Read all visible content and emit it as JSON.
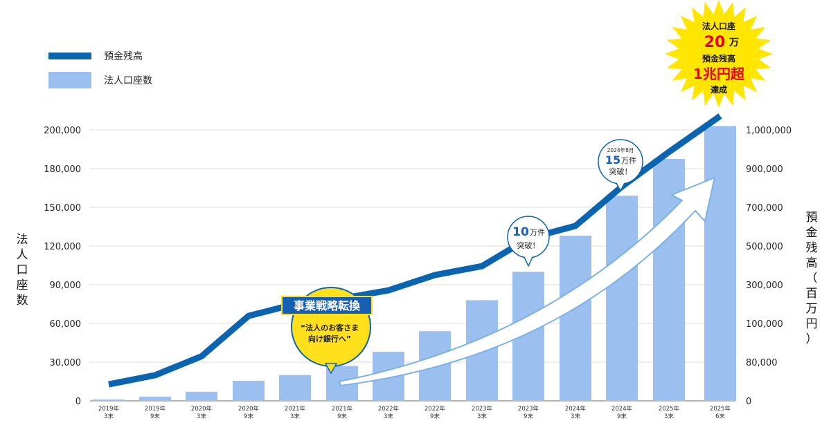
{
  "chart_data": {
    "type": "bar+line",
    "legend": [
      {
        "name": "預金残高",
        "kind": "line",
        "color": "#0a64b0"
      },
      {
        "name": "法人口座数",
        "kind": "bar",
        "color": "#9bbfee"
      }
    ],
    "legend_position": "top-left",
    "categories": [
      [
        "2019年",
        "3末"
      ],
      [
        "2019年",
        "9末"
      ],
      [
        "2020年",
        "3末"
      ],
      [
        "2020年",
        "9末"
      ],
      [
        "2021年",
        "3末"
      ],
      [
        "2021年",
        "9末"
      ],
      [
        "2022年",
        "3末"
      ],
      [
        "2022年",
        "9末"
      ],
      [
        "2023年",
        "3末"
      ],
      [
        "2023年",
        "9末"
      ],
      [
        "2024年",
        "3末"
      ],
      [
        "2024年",
        "9末"
      ],
      [
        "2025年",
        "3末"
      ],
      [
        "2025年",
        "6末"
      ]
    ],
    "y_left": {
      "label": "法人口座数",
      "ticks": [
        "0",
        "30,000",
        "60,000",
        "90,000",
        "120,000",
        "150,000",
        "180,000",
        "200,000"
      ],
      "tick_values": [
        0,
        30000,
        60000,
        90000,
        120000,
        150000,
        180000,
        200000
      ]
    },
    "y_right": {
      "label": "預金残高（百万円）",
      "ticks": [
        "0",
        "80,000",
        "100,000",
        "300,000",
        "500,000",
        "700,000",
        "900,000",
        "1,000,000"
      ],
      "tick_values": [
        0,
        80000,
        100000,
        300000,
        500000,
        700000,
        900000,
        1000000
      ]
    },
    "series": [
      {
        "name": "法人口座数",
        "axis": "left",
        "values": [
          1000,
          3200,
          7000,
          15500,
          20000,
          27000,
          38000,
          54000,
          78000,
          100000,
          128000,
          159000,
          185000,
          202000
        ]
      },
      {
        "name": "預金残高",
        "axis": "right",
        "values": [
          34000,
          53000,
          83000,
          139000,
          200000,
          229000,
          271000,
          350000,
          396000,
          539000,
          604000,
          807000,
          943000,
          1036000
        ]
      }
    ],
    "grid": true,
    "annotations": {
      "strategy": {
        "title": "事業戦略転換",
        "line1": "“法人のお客さま",
        "line2": "向け銀行へ”"
      },
      "milestone10": {
        "num": "10",
        "unit": "万件",
        "text": "突破！"
      },
      "milestone15": {
        "date": "2024年8月",
        "num": "15",
        "unit": "万件",
        "text": "突破！"
      },
      "burst": {
        "l1": "法人口座",
        "l2num": "20",
        "l2unit": "万",
        "l3": "預金残高",
        "l4": "1兆円超",
        "l5": "達成"
      }
    }
  }
}
